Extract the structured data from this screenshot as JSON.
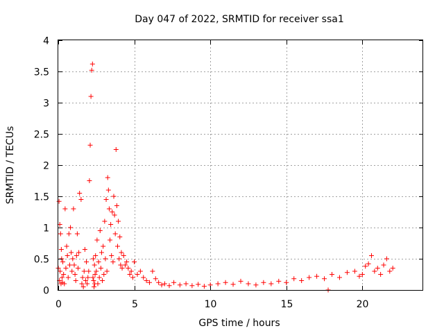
{
  "chart_data": {
    "type": "scatter",
    "title": "Day 047 of 2022, SRMTID for receiver ssa1",
    "xlabel": "GPS time / hours",
    "ylabel": "SRMTID / TECUs",
    "xlim": [
      0,
      24
    ],
    "ylim": [
      0,
      4
    ],
    "x_ticks": [
      0,
      5,
      10,
      15,
      20
    ],
    "x_tick_labels": [
      "0",
      "5",
      "10",
      "15",
      "20"
    ],
    "y_ticks": [
      0,
      0.5,
      1,
      1.5,
      2,
      2.5,
      3,
      3.5,
      4
    ],
    "y_tick_labels": [
      "0",
      "0.5",
      "1",
      "1.5",
      "2",
      "2.5",
      "3",
      "3.5",
      "4"
    ],
    "grid": true,
    "marker": "+",
    "color": "#ff0000",
    "series": [
      {
        "name": "ssa1",
        "x": [
          0.0,
          0.05,
          0.08,
          0.1,
          0.12,
          0.15,
          0.18,
          0.2,
          0.22,
          0.25,
          0.28,
          0.3,
          0.35,
          0.4,
          0.45,
          0.5,
          0.55,
          0.6,
          0.65,
          0.7,
          0.75,
          0.8,
          0.85,
          0.9,
          0.95,
          1.0,
          1.05,
          1.1,
          1.15,
          1.2,
          1.25,
          1.3,
          1.35,
          1.4,
          1.5,
          1.55,
          1.6,
          1.65,
          1.7,
          1.75,
          1.8,
          1.85,
          1.9,
          1.95,
          2.0,
          2.05,
          2.1,
          2.15,
          2.2,
          2.25,
          2.28,
          2.3,
          2.32,
          2.35,
          2.38,
          2.4,
          2.42,
          2.45,
          2.5,
          2.55,
          2.6,
          2.65,
          2.7,
          2.75,
          2.8,
          2.85,
          2.9,
          2.95,
          3.0,
          3.05,
          3.1,
          3.15,
          3.2,
          3.25,
          3.3,
          3.35,
          3.4,
          3.45,
          3.5,
          3.55,
          3.6,
          3.65,
          3.7,
          3.75,
          3.8,
          3.85,
          3.9,
          3.95,
          4.0,
          4.05,
          4.1,
          4.15,
          4.2,
          4.3,
          4.4,
          4.5,
          4.6,
          4.7,
          4.8,
          4.9,
          5.0,
          5.2,
          5.4,
          5.6,
          5.8,
          6.0,
          6.2,
          6.4,
          6.6,
          6.8,
          7.0,
          7.3,
          7.6,
          8.0,
          8.4,
          8.8,
          9.2,
          9.6,
          10.0,
          10.5,
          11.0,
          11.5,
          12.0,
          12.5,
          13.0,
          13.5,
          14.0,
          14.5,
          15.0,
          15.5,
          16.0,
          16.5,
          17.0,
          17.5,
          17.75,
          18.0,
          18.5,
          19.0,
          19.5,
          19.8,
          20.0,
          20.2,
          20.4,
          20.6,
          20.8,
          21.0,
          21.2,
          21.4,
          21.6,
          21.8,
          22.0
        ],
        "y": [
          0.35,
          1.42,
          0.15,
          1.05,
          0.3,
          0.9,
          0.1,
          0.65,
          0.5,
          0.2,
          0.12,
          0.45,
          0.25,
          0.1,
          1.3,
          0.35,
          0.7,
          0.55,
          0.2,
          0.9,
          0.4,
          1.0,
          0.6,
          0.3,
          0.5,
          1.3,
          0.4,
          0.25,
          0.15,
          0.55,
          0.9,
          0.35,
          0.6,
          1.55,
          1.45,
          0.1,
          0.2,
          0.05,
          0.3,
          0.65,
          0.15,
          0.45,
          0.1,
          0.2,
          0.3,
          1.75,
          2.32,
          3.1,
          3.52,
          3.62,
          0.2,
          0.5,
          0.15,
          0.05,
          0.4,
          0.1,
          0.25,
          0.55,
          0.3,
          0.8,
          0.1,
          0.45,
          0.2,
          0.95,
          0.35,
          0.6,
          0.15,
          0.7,
          0.25,
          1.1,
          0.5,
          1.45,
          0.3,
          1.8,
          1.6,
          1.3,
          0.8,
          1.05,
          0.55,
          1.25,
          0.45,
          1.5,
          1.2,
          0.9,
          2.25,
          1.35,
          0.7,
          1.1,
          0.5,
          0.85,
          0.4,
          0.6,
          0.35,
          0.55,
          0.4,
          0.45,
          0.35,
          0.25,
          0.3,
          0.2,
          0.45,
          0.25,
          0.3,
          0.2,
          0.15,
          0.12,
          0.3,
          0.18,
          0.12,
          0.08,
          0.1,
          0.07,
          0.12,
          0.08,
          0.1,
          0.07,
          0.09,
          0.06,
          0.08,
          0.1,
          0.12,
          0.09,
          0.14,
          0.1,
          0.08,
          0.12,
          0.1,
          0.14,
          0.12,
          0.18,
          0.15,
          0.2,
          0.22,
          0.18,
          0.0,
          0.25,
          0.2,
          0.28,
          0.3,
          0.22,
          0.25,
          0.38,
          0.42,
          0.55,
          0.3,
          0.35,
          0.25,
          0.4,
          0.5,
          0.3,
          0.35
        ]
      }
    ]
  }
}
